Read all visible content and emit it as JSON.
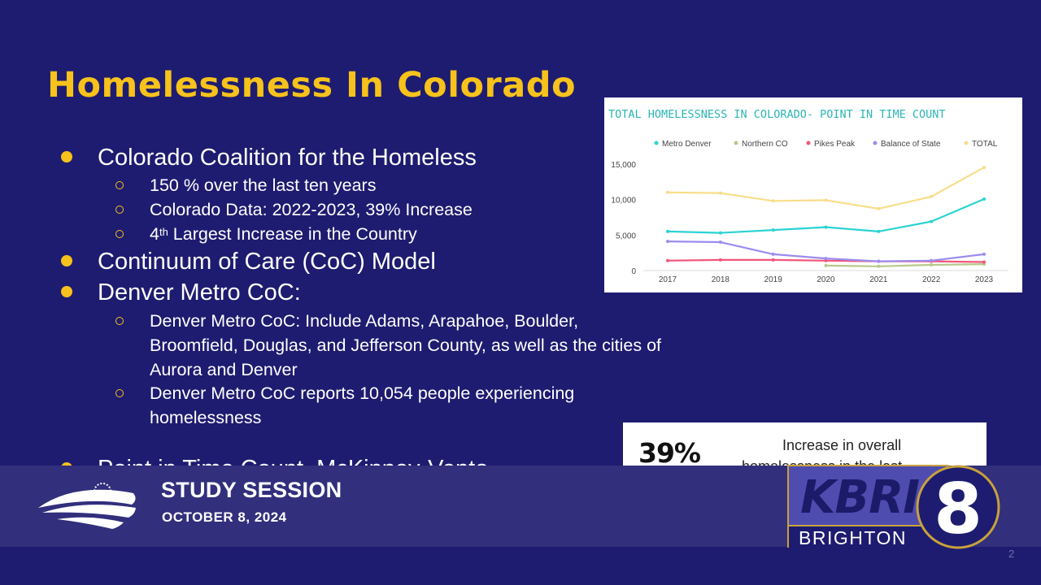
{
  "slide": {
    "title": "Homelessness In Colorado",
    "page_number": "2",
    "bullets": {
      "b1": "Colorado Coalition for the Homeless",
      "b1_1": "150 % over the last ten years",
      "b1_2": "Colorado Data: 2022-2023, 39% Increase",
      "b1_3_sup": "th",
      "b1_3_prefix": "4",
      "b1_3_rest": " Largest Increase in the Country",
      "b2": "Continuum of Care (CoC) Model",
      "b3": "Denver Metro CoC:",
      "b3_1": "Denver Metro CoC: Include Adams, Arapahoe, Boulder, Broomfield, Douglas, and Jefferson County, as well as the cities of Aurora and Denver",
      "b3_2": "Denver Metro CoC reports 10,054 people experiencing homelessness",
      "b4_partial": "Point in Time Count, McKinney-Vento"
    },
    "stat_card": {
      "number": "39%",
      "line1": "Increase in overall",
      "line2": "homelessness in the last"
    }
  },
  "banner": {
    "title": "STUDY SESSION",
    "date": "OCTOBER 8, 2024"
  },
  "station_logo": {
    "letters": "KBRI",
    "city": "BRIGHTON",
    "channel": "8",
    "colors": {
      "box": "#4f4cb0",
      "gold": "#c8a23c",
      "navy": "#1c1b6a"
    }
  },
  "colors": {
    "background": "#1e1c70",
    "accent": "#f6c21b",
    "banner": "#322f7d"
  },
  "chart_data": {
    "type": "line",
    "title": "TOTAL HOMELESSNESS IN COLORADO- POINT IN TIME COUNT",
    "x": [
      "2017",
      "2018",
      "2019",
      "2020",
      "2021",
      "2022",
      "2023"
    ],
    "ylim": [
      0,
      16000
    ],
    "yticks": [
      0,
      5000,
      10000,
      15000
    ],
    "ytick_labels": [
      "0",
      "5,000",
      "10,000",
      "15,000"
    ],
    "legend_position": "top",
    "grid": false,
    "series": [
      {
        "name": "Metro Denver",
        "color": "#2bd3d3",
        "values": [
          5500,
          5300,
          5700,
          6100,
          5500,
          6900,
          10054
        ]
      },
      {
        "name": "Northern CO",
        "color": "#b7c98a",
        "values": [
          null,
          null,
          null,
          700,
          600,
          800,
          900
        ]
      },
      {
        "name": "Pikes Peak",
        "color": "#f2557a",
        "values": [
          1400,
          1500,
          1500,
          1400,
          1300,
          1300,
          1200
        ]
      },
      {
        "name": "Balance of State",
        "color": "#9b8cf0",
        "values": [
          4100,
          4000,
          2300,
          1700,
          1300,
          1400,
          2300
        ]
      },
      {
        "name": "TOTAL",
        "color": "#f7de8a",
        "values": [
          11000,
          10900,
          9800,
          9900,
          8700,
          10400,
          14500
        ]
      }
    ]
  }
}
